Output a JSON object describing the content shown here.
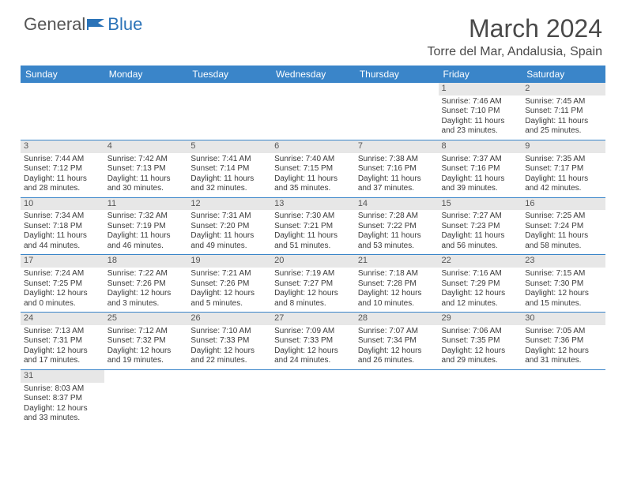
{
  "brand": {
    "general": "General",
    "blue": "Blue",
    "flag_color": "#2b73b8"
  },
  "title": "March 2024",
  "location": "Torre del Mar, Andalusia, Spain",
  "header_bg": "#3a85c9",
  "header_fg": "#ffffff",
  "daynum_bg": "#e7e7e7",
  "rule_color": "#3a85c9",
  "weekdays": [
    "Sunday",
    "Monday",
    "Tuesday",
    "Wednesday",
    "Thursday",
    "Friday",
    "Saturday"
  ],
  "weeks": [
    [
      null,
      null,
      null,
      null,
      null,
      {
        "n": "1",
        "sr": "Sunrise: 7:46 AM",
        "ss": "Sunset: 7:10 PM",
        "d1": "Daylight: 11 hours",
        "d2": "and 23 minutes."
      },
      {
        "n": "2",
        "sr": "Sunrise: 7:45 AM",
        "ss": "Sunset: 7:11 PM",
        "d1": "Daylight: 11 hours",
        "d2": "and 25 minutes."
      }
    ],
    [
      {
        "n": "3",
        "sr": "Sunrise: 7:44 AM",
        "ss": "Sunset: 7:12 PM",
        "d1": "Daylight: 11 hours",
        "d2": "and 28 minutes."
      },
      {
        "n": "4",
        "sr": "Sunrise: 7:42 AM",
        "ss": "Sunset: 7:13 PM",
        "d1": "Daylight: 11 hours",
        "d2": "and 30 minutes."
      },
      {
        "n": "5",
        "sr": "Sunrise: 7:41 AM",
        "ss": "Sunset: 7:14 PM",
        "d1": "Daylight: 11 hours",
        "d2": "and 32 minutes."
      },
      {
        "n": "6",
        "sr": "Sunrise: 7:40 AM",
        "ss": "Sunset: 7:15 PM",
        "d1": "Daylight: 11 hours",
        "d2": "and 35 minutes."
      },
      {
        "n": "7",
        "sr": "Sunrise: 7:38 AM",
        "ss": "Sunset: 7:16 PM",
        "d1": "Daylight: 11 hours",
        "d2": "and 37 minutes."
      },
      {
        "n": "8",
        "sr": "Sunrise: 7:37 AM",
        "ss": "Sunset: 7:16 PM",
        "d1": "Daylight: 11 hours",
        "d2": "and 39 minutes."
      },
      {
        "n": "9",
        "sr": "Sunrise: 7:35 AM",
        "ss": "Sunset: 7:17 PM",
        "d1": "Daylight: 11 hours",
        "d2": "and 42 minutes."
      }
    ],
    [
      {
        "n": "10",
        "sr": "Sunrise: 7:34 AM",
        "ss": "Sunset: 7:18 PM",
        "d1": "Daylight: 11 hours",
        "d2": "and 44 minutes."
      },
      {
        "n": "11",
        "sr": "Sunrise: 7:32 AM",
        "ss": "Sunset: 7:19 PM",
        "d1": "Daylight: 11 hours",
        "d2": "and 46 minutes."
      },
      {
        "n": "12",
        "sr": "Sunrise: 7:31 AM",
        "ss": "Sunset: 7:20 PM",
        "d1": "Daylight: 11 hours",
        "d2": "and 49 minutes."
      },
      {
        "n": "13",
        "sr": "Sunrise: 7:30 AM",
        "ss": "Sunset: 7:21 PM",
        "d1": "Daylight: 11 hours",
        "d2": "and 51 minutes."
      },
      {
        "n": "14",
        "sr": "Sunrise: 7:28 AM",
        "ss": "Sunset: 7:22 PM",
        "d1": "Daylight: 11 hours",
        "d2": "and 53 minutes."
      },
      {
        "n": "15",
        "sr": "Sunrise: 7:27 AM",
        "ss": "Sunset: 7:23 PM",
        "d1": "Daylight: 11 hours",
        "d2": "and 56 minutes."
      },
      {
        "n": "16",
        "sr": "Sunrise: 7:25 AM",
        "ss": "Sunset: 7:24 PM",
        "d1": "Daylight: 11 hours",
        "d2": "and 58 minutes."
      }
    ],
    [
      {
        "n": "17",
        "sr": "Sunrise: 7:24 AM",
        "ss": "Sunset: 7:25 PM",
        "d1": "Daylight: 12 hours",
        "d2": "and 0 minutes."
      },
      {
        "n": "18",
        "sr": "Sunrise: 7:22 AM",
        "ss": "Sunset: 7:26 PM",
        "d1": "Daylight: 12 hours",
        "d2": "and 3 minutes."
      },
      {
        "n": "19",
        "sr": "Sunrise: 7:21 AM",
        "ss": "Sunset: 7:26 PM",
        "d1": "Daylight: 12 hours",
        "d2": "and 5 minutes."
      },
      {
        "n": "20",
        "sr": "Sunrise: 7:19 AM",
        "ss": "Sunset: 7:27 PM",
        "d1": "Daylight: 12 hours",
        "d2": "and 8 minutes."
      },
      {
        "n": "21",
        "sr": "Sunrise: 7:18 AM",
        "ss": "Sunset: 7:28 PM",
        "d1": "Daylight: 12 hours",
        "d2": "and 10 minutes."
      },
      {
        "n": "22",
        "sr": "Sunrise: 7:16 AM",
        "ss": "Sunset: 7:29 PM",
        "d1": "Daylight: 12 hours",
        "d2": "and 12 minutes."
      },
      {
        "n": "23",
        "sr": "Sunrise: 7:15 AM",
        "ss": "Sunset: 7:30 PM",
        "d1": "Daylight: 12 hours",
        "d2": "and 15 minutes."
      }
    ],
    [
      {
        "n": "24",
        "sr": "Sunrise: 7:13 AM",
        "ss": "Sunset: 7:31 PM",
        "d1": "Daylight: 12 hours",
        "d2": "and 17 minutes."
      },
      {
        "n": "25",
        "sr": "Sunrise: 7:12 AM",
        "ss": "Sunset: 7:32 PM",
        "d1": "Daylight: 12 hours",
        "d2": "and 19 minutes."
      },
      {
        "n": "26",
        "sr": "Sunrise: 7:10 AM",
        "ss": "Sunset: 7:33 PM",
        "d1": "Daylight: 12 hours",
        "d2": "and 22 minutes."
      },
      {
        "n": "27",
        "sr": "Sunrise: 7:09 AM",
        "ss": "Sunset: 7:33 PM",
        "d1": "Daylight: 12 hours",
        "d2": "and 24 minutes."
      },
      {
        "n": "28",
        "sr": "Sunrise: 7:07 AM",
        "ss": "Sunset: 7:34 PM",
        "d1": "Daylight: 12 hours",
        "d2": "and 26 minutes."
      },
      {
        "n": "29",
        "sr": "Sunrise: 7:06 AM",
        "ss": "Sunset: 7:35 PM",
        "d1": "Daylight: 12 hours",
        "d2": "and 29 minutes."
      },
      {
        "n": "30",
        "sr": "Sunrise: 7:05 AM",
        "ss": "Sunset: 7:36 PM",
        "d1": "Daylight: 12 hours",
        "d2": "and 31 minutes."
      }
    ],
    [
      {
        "n": "31",
        "sr": "Sunrise: 8:03 AM",
        "ss": "Sunset: 8:37 PM",
        "d1": "Daylight: 12 hours",
        "d2": "and 33 minutes."
      },
      null,
      null,
      null,
      null,
      null,
      null
    ]
  ]
}
